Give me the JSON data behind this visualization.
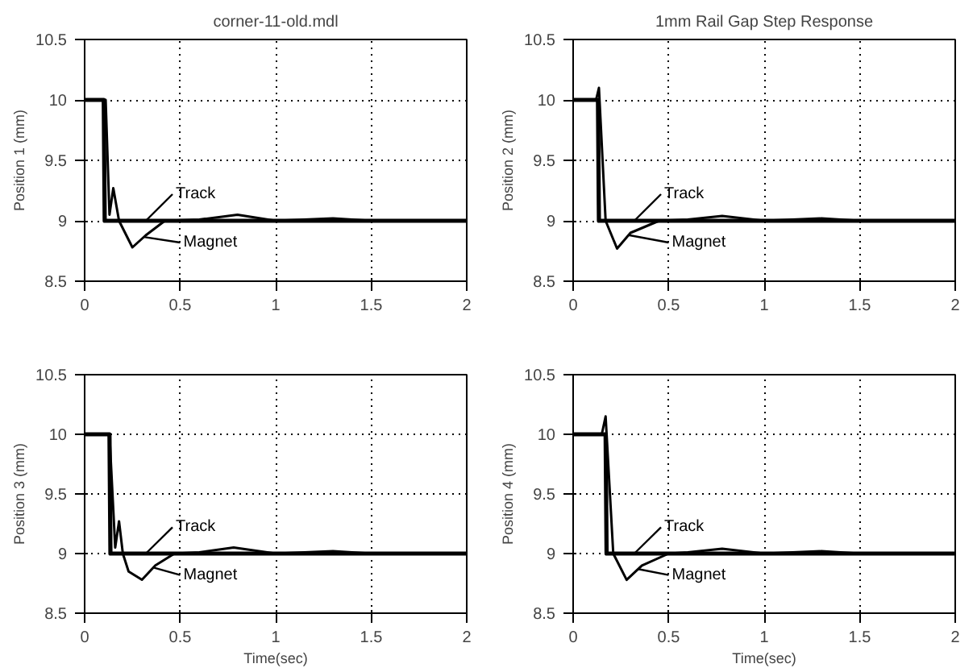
{
  "chart_data": [
    {
      "type": "line",
      "title": "corner-11-old.mdl",
      "ylabel": "Position 1 (mm)",
      "xlim": [
        0,
        2
      ],
      "ylim": [
        8.5,
        10.5
      ],
      "xticks": [
        0,
        0.5,
        1,
        1.5,
        2
      ],
      "yticks": [
        8.5,
        9,
        9.5,
        10,
        10.5
      ],
      "grid": true,
      "line_style": "solid",
      "series": [
        {
          "name": "Track",
          "color": "#000000",
          "x": [
            0,
            0.1,
            0.105,
            2
          ],
          "values": [
            10,
            10,
            9,
            9
          ]
        },
        {
          "name": "Magnet",
          "color": "#000000",
          "x": [
            0,
            0.11,
            0.13,
            0.15,
            0.18,
            0.25,
            0.32,
            0.42,
            0.6,
            0.8,
            1.0,
            1.3,
            1.5,
            2
          ],
          "values": [
            10,
            10,
            9.05,
            9.27,
            9.0,
            8.78,
            8.88,
            9.0,
            9.01,
            9.05,
            9.0,
            9.02,
            9.0,
            9.0
          ]
        }
      ]
    },
    {
      "type": "line",
      "title": "1mm Rail Gap Step Response",
      "ylabel": "Position 2 (mm)",
      "xlim": [
        0,
        2
      ],
      "ylim": [
        8.5,
        10.5
      ],
      "xticks": [
        0,
        0.5,
        1,
        1.5,
        2
      ],
      "yticks": [
        8.5,
        9,
        9.5,
        10,
        10.5
      ],
      "grid": true,
      "line_style": "solid",
      "series": [
        {
          "name": "Track",
          "color": "#000000",
          "x": [
            0,
            0.13,
            0.135,
            2
          ],
          "values": [
            10,
            10,
            9,
            9
          ]
        },
        {
          "name": "Magnet",
          "color": "#000000",
          "x": [
            0,
            0.12,
            0.135,
            0.17,
            0.23,
            0.3,
            0.45,
            0.6,
            0.78,
            1.0,
            1.3,
            1.5,
            2
          ],
          "values": [
            10,
            10,
            10.1,
            9.0,
            8.77,
            8.9,
            9.0,
            9.01,
            9.04,
            9.0,
            9.02,
            9.0,
            9.0
          ]
        }
      ]
    },
    {
      "type": "line",
      "ylabel": "Position 3 (mm)",
      "xlabel": "Time(sec)",
      "xlim": [
        0,
        2
      ],
      "ylim": [
        8.5,
        10.5
      ],
      "xticks": [
        0,
        0.5,
        1,
        1.5,
        2
      ],
      "yticks": [
        8.5,
        9,
        9.5,
        10,
        10.5
      ],
      "grid": true,
      "line_style": "solid",
      "series": [
        {
          "name": "Track",
          "color": "#000000",
          "x": [
            0,
            0.13,
            0.135,
            2
          ],
          "values": [
            10,
            10,
            9,
            9
          ]
        },
        {
          "name": "Magnet",
          "color": "#000000",
          "x": [
            0,
            0.13,
            0.16,
            0.18,
            0.2,
            0.23,
            0.3,
            0.37,
            0.47,
            0.6,
            0.78,
            1.0,
            1.3,
            1.5,
            2
          ],
          "values": [
            10,
            10,
            9.05,
            9.27,
            9.0,
            8.85,
            8.78,
            8.9,
            9.0,
            9.01,
            9.05,
            9.0,
            9.02,
            9.0,
            9.0
          ]
        }
      ]
    },
    {
      "type": "line",
      "ylabel": "Position 4 (mm)",
      "xlabel": "Time(sec)",
      "xlim": [
        0,
        2
      ],
      "ylim": [
        8.5,
        10.5
      ],
      "xticks": [
        0,
        0.5,
        1,
        1.5,
        2
      ],
      "yticks": [
        8.5,
        9,
        9.5,
        10,
        10.5
      ],
      "grid": true,
      "line_style": "solid",
      "series": [
        {
          "name": "Track",
          "color": "#000000",
          "x": [
            0,
            0.17,
            0.175,
            2
          ],
          "values": [
            10,
            10,
            9,
            9
          ]
        },
        {
          "name": "Magnet",
          "color": "#000000",
          "x": [
            0,
            0.15,
            0.17,
            0.21,
            0.28,
            0.36,
            0.5,
            0.6,
            0.78,
            1.0,
            1.3,
            1.5,
            2
          ],
          "values": [
            10,
            10,
            10.15,
            9.0,
            8.78,
            8.9,
            9.0,
            9.01,
            9.04,
            9.0,
            9.02,
            9.0,
            9.0
          ]
        }
      ]
    }
  ]
}
